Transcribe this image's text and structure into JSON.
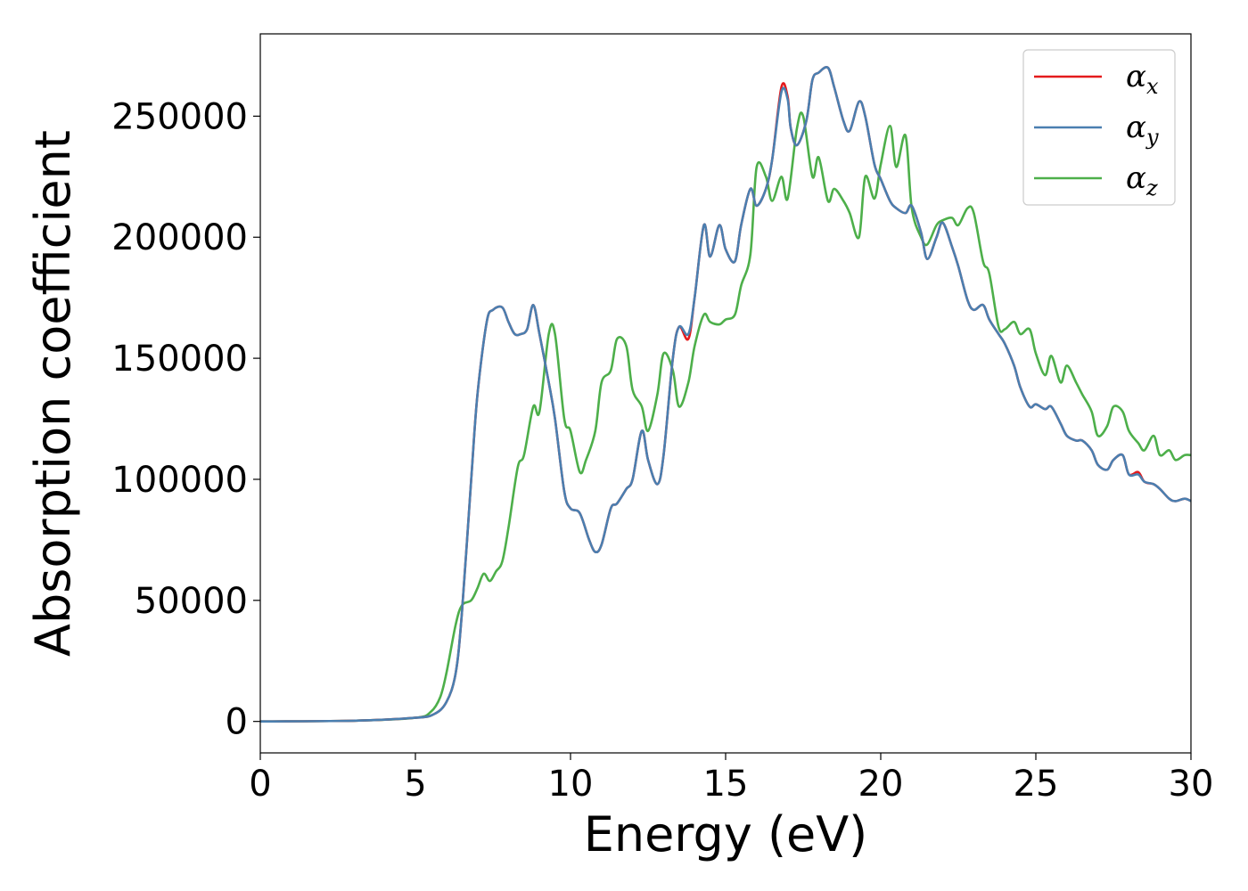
{
  "chart_data": {
    "type": "line",
    "title": "",
    "xlabel": "Energy (eV)",
    "ylabel": "Absorption coefficient",
    "xlim": [
      0,
      30
    ],
    "ylim": [
      -13000,
      284000
    ],
    "xticks": [
      0,
      5,
      10,
      15,
      20,
      25,
      30
    ],
    "yticks": [
      0,
      50000,
      100000,
      150000,
      200000,
      250000
    ],
    "grid": false,
    "legend_position": "top-right",
    "series": [
      {
        "name": "α",
        "subscript": "x",
        "color": "#e41a1c",
        "x": [
          0,
          3,
          5,
          5.6,
          6.0,
          6.3,
          6.5,
          6.8,
          7.0,
          7.3,
          7.5,
          7.8,
          8.0,
          8.2,
          8.4,
          8.6,
          8.8,
          9.0,
          9.3,
          9.5,
          9.8,
          10.0,
          10.3,
          10.6,
          10.8,
          11.0,
          11.3,
          11.5,
          11.8,
          12.0,
          12.3,
          12.5,
          12.8,
          13.0,
          13.3,
          13.5,
          13.8,
          14.0,
          14.3,
          14.5,
          14.8,
          15.0,
          15.3,
          15.5,
          15.8,
          16.0,
          16.3,
          16.5,
          16.8,
          17.0,
          17.1,
          17.3,
          17.6,
          17.8,
          18.0,
          18.3,
          18.5,
          18.8,
          19.0,
          19.3,
          19.5,
          19.8,
          20.0,
          20.3,
          20.5,
          20.8,
          21.0,
          21.3,
          21.5,
          21.8,
          22.0,
          22.3,
          22.5,
          22.8,
          23.0,
          23.3,
          23.5,
          23.8,
          24.0,
          24.3,
          24.5,
          24.8,
          25.0,
          25.3,
          25.5,
          25.8,
          26.0,
          26.3,
          26.5,
          26.8,
          27.0,
          27.3,
          27.5,
          27.8,
          28.0,
          28.3,
          28.5,
          28.8,
          29.0,
          29.3,
          29.5,
          29.8,
          30.0
        ],
        "y": [
          0,
          300,
          1500,
          3000,
          8000,
          20000,
          45000,
          100000,
          135000,
          165000,
          170000,
          171000,
          165000,
          160000,
          160000,
          162000,
          172000,
          160000,
          140000,
          125000,
          95000,
          88000,
          86000,
          75000,
          70000,
          73000,
          88000,
          90000,
          96000,
          100000,
          120000,
          108000,
          98000,
          110000,
          150000,
          163000,
          158000,
          175000,
          205000,
          192000,
          205000,
          195000,
          190000,
          205000,
          220000,
          213000,
          220000,
          232000,
          262000,
          258000,
          245000,
          238000,
          248000,
          265000,
          268000,
          270000,
          262000,
          248000,
          244000,
          256000,
          250000,
          230000,
          224000,
          215000,
          212000,
          210000,
          213000,
          202000,
          191000,
          200000,
          206000,
          196000,
          188000,
          174000,
          170000,
          172000,
          166000,
          160000,
          156000,
          147000,
          138000,
          130000,
          131000,
          129000,
          130000,
          123000,
          118000,
          116000,
          116000,
          112000,
          106000,
          104000,
          108000,
          110000,
          102000,
          103000,
          99000,
          98000,
          96000,
          92000,
          91000,
          92000,
          91000
        ]
      },
      {
        "name": "α",
        "subscript": "y",
        "color": "#4a7fb0",
        "x": [
          0,
          3,
          5,
          5.6,
          6.0,
          6.3,
          6.5,
          6.8,
          7.0,
          7.3,
          7.5,
          7.8,
          8.0,
          8.2,
          8.4,
          8.6,
          8.8,
          9.0,
          9.3,
          9.5,
          9.8,
          10.0,
          10.3,
          10.6,
          10.8,
          11.0,
          11.3,
          11.5,
          11.8,
          12.0,
          12.3,
          12.5,
          12.8,
          13.0,
          13.3,
          13.5,
          13.8,
          14.0,
          14.3,
          14.5,
          14.8,
          15.0,
          15.3,
          15.5,
          15.8,
          16.0,
          16.3,
          16.5,
          16.8,
          17.0,
          17.1,
          17.3,
          17.6,
          17.8,
          18.0,
          18.3,
          18.5,
          18.8,
          19.0,
          19.3,
          19.5,
          19.8,
          20.0,
          20.3,
          20.5,
          20.8,
          21.0,
          21.3,
          21.5,
          21.8,
          22.0,
          22.3,
          22.5,
          22.8,
          23.0,
          23.3,
          23.5,
          23.8,
          24.0,
          24.3,
          24.5,
          24.8,
          25.0,
          25.3,
          25.5,
          25.8,
          26.0,
          26.3,
          26.5,
          26.8,
          27.0,
          27.3,
          27.5,
          27.8,
          28.0,
          28.3,
          28.5,
          28.8,
          29.0,
          29.3,
          29.5,
          29.8,
          30.0
        ],
        "y": [
          0,
          300,
          1500,
          3000,
          8000,
          20000,
          45000,
          100000,
          135000,
          165000,
          170000,
          171000,
          165000,
          160000,
          160000,
          162000,
          172000,
          160000,
          140000,
          125000,
          95000,
          88000,
          86000,
          75000,
          70000,
          73000,
          88000,
          90000,
          96000,
          100000,
          120000,
          108000,
          98000,
          110000,
          150000,
          163000,
          160000,
          175000,
          205000,
          192000,
          205000,
          195000,
          190000,
          205000,
          220000,
          213000,
          220000,
          232000,
          260000,
          257000,
          245000,
          238000,
          248000,
          265000,
          268000,
          270000,
          262000,
          248000,
          244000,
          256000,
          250000,
          230000,
          224000,
          215000,
          212000,
          210000,
          213000,
          202000,
          191000,
          200000,
          206000,
          196000,
          188000,
          174000,
          170000,
          172000,
          166000,
          160000,
          156000,
          147000,
          138000,
          130000,
          131000,
          129000,
          130000,
          123000,
          118000,
          116000,
          116000,
          112000,
          106000,
          104000,
          108000,
          110000,
          102000,
          102000,
          99000,
          98000,
          96000,
          92000,
          91000,
          92000,
          91000
        ]
      },
      {
        "name": "α",
        "subscript": "z",
        "color": "#4daf4a",
        "x": [
          0,
          3,
          5,
          5.5,
          5.8,
          6.0,
          6.3,
          6.5,
          6.8,
          7.0,
          7.2,
          7.4,
          7.6,
          7.8,
          8.0,
          8.3,
          8.5,
          8.8,
          9.0,
          9.3,
          9.5,
          9.8,
          10.0,
          10.3,
          10.5,
          10.8,
          11.0,
          11.3,
          11.5,
          11.8,
          12.0,
          12.3,
          12.5,
          12.8,
          13.0,
          13.3,
          13.5,
          13.8,
          14.0,
          14.3,
          14.5,
          14.8,
          15.0,
          15.3,
          15.5,
          15.8,
          16.0,
          16.3,
          16.5,
          16.8,
          17.0,
          17.3,
          17.5,
          17.8,
          18.0,
          18.3,
          18.5,
          18.8,
          19.0,
          19.3,
          19.5,
          19.8,
          20.0,
          20.3,
          20.5,
          20.8,
          21.0,
          21.3,
          21.5,
          21.8,
          22.0,
          22.3,
          22.5,
          22.8,
          23.0,
          23.3,
          23.5,
          23.8,
          24.0,
          24.3,
          24.5,
          24.8,
          25.0,
          25.3,
          25.5,
          25.8,
          26.0,
          26.3,
          26.5,
          26.8,
          27.0,
          27.3,
          27.5,
          27.8,
          28.0,
          28.3,
          28.5,
          28.8,
          29.0,
          29.3,
          29.5,
          29.8,
          30.0
        ],
        "y": [
          0,
          300,
          1500,
          4000,
          10000,
          20000,
          40000,
          48000,
          50000,
          55000,
          61000,
          58000,
          62000,
          66000,
          80000,
          105000,
          110000,
          130000,
          128000,
          160000,
          160000,
          125000,
          120000,
          103000,
          108000,
          120000,
          140000,
          145000,
          158000,
          155000,
          137000,
          130000,
          120000,
          135000,
          152000,
          145000,
          130000,
          140000,
          155000,
          168000,
          165000,
          164000,
          166000,
          168000,
          180000,
          193000,
          229000,
          225000,
          215000,
          225000,
          216000,
          245000,
          250000,
          225000,
          233000,
          215000,
          220000,
          215000,
          210000,
          200000,
          225000,
          216000,
          230000,
          246000,
          229000,
          242000,
          212000,
          200000,
          197000,
          205000,
          207000,
          208000,
          205000,
          212000,
          210000,
          190000,
          185000,
          163000,
          162000,
          165000,
          160000,
          162000,
          152000,
          143000,
          151000,
          140000,
          147000,
          140000,
          135000,
          128000,
          118000,
          122000,
          130000,
          128000,
          120000,
          115000,
          112000,
          118000,
          110000,
          112000,
          108000,
          110000,
          110000
        ]
      }
    ]
  }
}
